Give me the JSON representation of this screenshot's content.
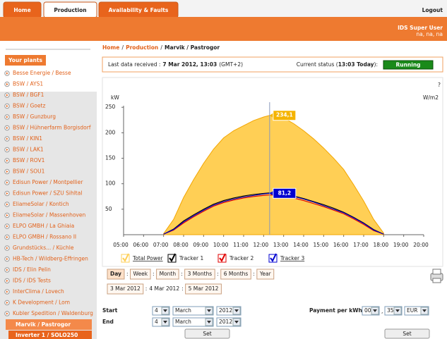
{
  "nav": {
    "tabs": [
      "Home",
      "Production",
      "Availability & Faults"
    ],
    "logout": "Logout"
  },
  "user": {
    "name": "IDS Super User",
    "info": "na, na, na"
  },
  "sidebar": {
    "heading": "Your plants",
    "plants": [
      "Besse Energie / Besse",
      "BSW / AYS1",
      "BSW / BGF1",
      "BSW / Goetz",
      "BSW / Gunzburg",
      "BSW / Hühnerfarm Borgisdorf",
      "BSW / KIN1",
      "BSW / LAK1",
      "BSW / ROV1",
      "BSW / SOU1",
      "Edisun Power / Montpellier",
      "Edisun Power / SZU Sihltal",
      "EliameSolar / Kontich",
      "EliameSolar / Massenhoven",
      "ELPO GMBH / La Ghiaia",
      "ELPO GMBH / Rossano II",
      "Grundstücks... / Küchle",
      "HB-Tech / Wildberg-Effringen",
      "IDS / Elin Pelin",
      "IDS / IDS Tests",
      "InterClima / Lovech",
      "K Development / Lom",
      "Kubler Spedition / Waldenburg"
    ],
    "selected": "Marvik / Pastrogor",
    "sub": "Inverter 1 / SOLO250"
  },
  "breadcrumb": {
    "items": [
      "Home",
      "Production",
      "Marvik / Pastrogor"
    ],
    "separator": "/"
  },
  "status": {
    "last_label": "Last data received :",
    "last_value": "7 Mar 2012, 13:03",
    "timezone": "(GMT+2)",
    "current_label": "Current status (",
    "current_time": "13:03 Today",
    "current_close": "):",
    "state": "Running"
  },
  "chart_data": {
    "type": "area-line",
    "y_label": "kW",
    "y2_label": "W/m2",
    "help": "?",
    "x": [
      7,
      7.5,
      8,
      8.5,
      9,
      9.5,
      10,
      10.5,
      11,
      11.5,
      12,
      12.3,
      12.5,
      13,
      13.5,
      14,
      14.5,
      15,
      15.5,
      16,
      16.5,
      17,
      17.5,
      18
    ],
    "xlim": [
      5,
      20
    ],
    "xticks": [
      {
        "value": 5,
        "label": "05:00"
      },
      {
        "value": 6,
        "label": "06:00"
      },
      {
        "value": 7,
        "label": "07:00"
      },
      {
        "value": 8,
        "label": "08:00"
      },
      {
        "value": 9,
        "label": "09:00"
      },
      {
        "value": 10,
        "label": "10:00"
      },
      {
        "value": 11,
        "label": "11:00"
      },
      {
        "value": 12,
        "label": "12:00"
      },
      {
        "value": 13,
        "label": "13:00"
      },
      {
        "value": 14,
        "label": "14:00"
      },
      {
        "value": 15,
        "label": "15:00"
      },
      {
        "value": 16,
        "label": "16:00"
      },
      {
        "value": 17,
        "label": "17:00"
      },
      {
        "value": 18,
        "label": "18:00"
      },
      {
        "value": 19,
        "label": "19:00"
      },
      {
        "value": 20,
        "label": "20:00"
      }
    ],
    "ylim": [
      0,
      260
    ],
    "yticks": [
      50,
      100,
      150,
      200,
      250
    ],
    "series": [
      {
        "name": "Total Power",
        "color": "#f2a500",
        "fill": "#ffcf55",
        "values": [
          2,
          30,
          73,
          108,
          140,
          168,
          190,
          204,
          214,
          224,
          231,
          234.1,
          232,
          229,
          218,
          204,
          188,
          170,
          150,
          128,
          98,
          66,
          30,
          3
        ]
      },
      {
        "name": "Tracker 1",
        "color": "#000000",
        "values": [
          1,
          11,
          27,
          39,
          50,
          60,
          67,
          72,
          76,
          79,
          81,
          82,
          81.5,
          80,
          76,
          71,
          65,
          59,
          52,
          44,
          34,
          23,
          10,
          1
        ]
      },
      {
        "name": "Tracker 2",
        "color": "#e00000",
        "values": [
          1,
          9,
          23,
          35,
          46,
          56,
          63,
          68,
          72,
          75,
          77,
          78,
          77.5,
          76,
          72,
          67,
          61,
          55,
          48,
          41,
          31,
          20,
          8,
          1
        ]
      },
      {
        "name": "Tracker 3",
        "color": "#0000d0",
        "values": [
          1,
          10,
          25,
          37,
          48,
          58,
          65,
          70,
          74,
          77,
          80,
          81.2,
          80.5,
          79,
          75,
          70,
          64,
          57,
          50,
          43,
          33,
          22,
          9,
          1
        ]
      }
    ],
    "crosshair": {
      "x": 12.3,
      "tooltips": [
        {
          "value": 234.1,
          "label": "234,1",
          "color": "#f5b400"
        },
        {
          "value": 81.2,
          "label": "81,2",
          "color": "#0000d0"
        }
      ]
    }
  },
  "periods": {
    "items": [
      "Day",
      "Week",
      "Month",
      "3 Months",
      "6 Months",
      "Year"
    ],
    "separator": ":"
  },
  "dates": [
    "3 Mar 2012",
    "4 Mar 2012",
    "5 Mar 2012"
  ],
  "form": {
    "start": "Start",
    "end": "End",
    "start_values": [
      "4",
      "March",
      "2012"
    ],
    "end_values": [
      "4",
      "March",
      "2012"
    ],
    "payment_label": "Payment per kWh",
    "payment_values": [
      "00",
      "35",
      "EUR"
    ],
    "payment_separator": ",",
    "set": "Set"
  }
}
